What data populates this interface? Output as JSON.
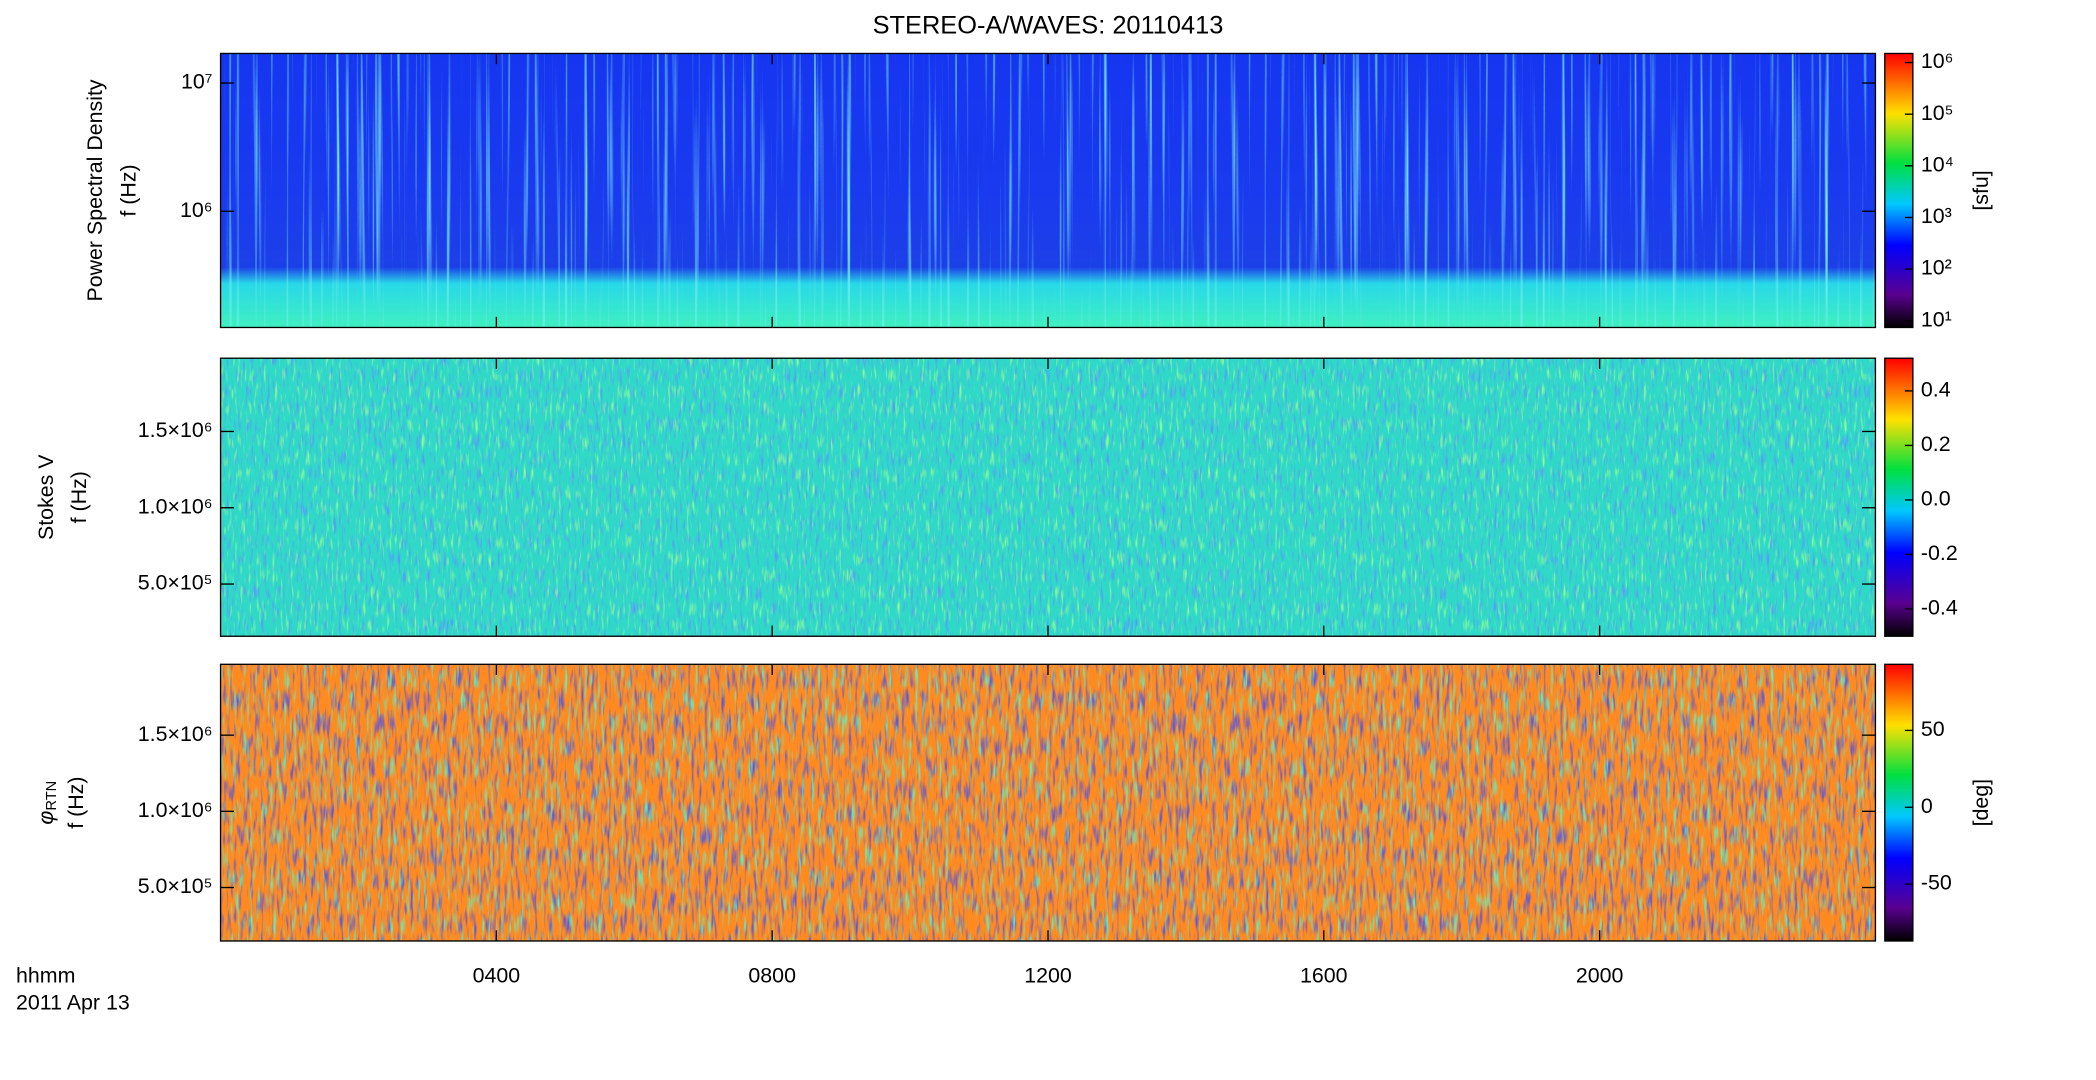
{
  "chart_data": [
    {
      "type": "heatmap",
      "title": "STEREO-A/WAVES: 20110413",
      "ylabel": [
        "Power Spectral Density",
        "f (Hz)"
      ],
      "yscale": "log",
      "ylim": [
        124000,
        17000000
      ],
      "yticks": [
        {
          "value": 1000000,
          "label": "10⁶"
        },
        {
          "value": 10000000,
          "label": "10⁷"
        }
      ],
      "xlim": [
        0,
        24
      ],
      "xticks": [
        {
          "value": 4,
          "label": "0400"
        },
        {
          "value": 8,
          "label": "0800"
        },
        {
          "value": 12,
          "label": "1200"
        },
        {
          "value": 16,
          "label": "1600"
        },
        {
          "value": 20,
          "label": "2000"
        }
      ],
      "colorbar": {
        "scale": "log",
        "lim": [
          7.4,
          1500000
        ],
        "ticks": [
          {
            "value": 10,
            "label": "10¹"
          },
          {
            "value": 100,
            "label": "10²"
          },
          {
            "value": 1000,
            "label": "10³"
          },
          {
            "value": 10000,
            "label": "10⁴"
          },
          {
            "value": 100000,
            "label": "10⁵"
          },
          {
            "value": 1000000,
            "label": "10⁶"
          }
        ],
        "label": "[sfu]"
      }
    },
    {
      "type": "heatmap",
      "ylabel": [
        "Stokes V",
        "f (Hz)"
      ],
      "yscale": "linear",
      "ylim": [
        158000,
        1980000
      ],
      "yticks": [
        {
          "value": 500000,
          "label": "5.0×10⁵"
        },
        {
          "value": 1000000,
          "label": "1.0×10⁶"
        },
        {
          "value": 1500000,
          "label": "1.5×10⁶"
        }
      ],
      "xlim": [
        0,
        24
      ],
      "xticks": [
        {
          "value": 4,
          "label": "0400"
        },
        {
          "value": 8,
          "label": "0800"
        },
        {
          "value": 12,
          "label": "1200"
        },
        {
          "value": 16,
          "label": "1600"
        },
        {
          "value": 20,
          "label": "2000"
        }
      ],
      "colorbar": {
        "scale": "linear",
        "lim": [
          -0.5,
          0.52
        ],
        "ticks": [
          -0.4,
          -0.2,
          {
            "value": 0,
            "label": "0.0"
          },
          0.2,
          0.4
        ]
      }
    },
    {
      "type": "heatmap",
      "ylabel": [
        "φ",
        "f (Hz)"
      ],
      "ylabel_subscript": "RTN",
      "yscale": "linear",
      "ylim": [
        149000,
        1965000
      ],
      "yticks": [
        {
          "value": 500000,
          "label": "5.0×10⁵"
        },
        {
          "value": 1000000,
          "label": "1.0×10⁶"
        },
        {
          "value": 1500000,
          "label": "1.5×10⁶"
        }
      ],
      "xlim": [
        0,
        24
      ],
      "xticks": [
        {
          "value": 4,
          "label": "0400"
        },
        {
          "value": 8,
          "label": "0800"
        },
        {
          "value": 12,
          "label": "1200"
        },
        {
          "value": 16,
          "label": "1600"
        },
        {
          "value": 20,
          "label": "2000"
        }
      ],
      "xlabel": [
        "hhmm",
        "2011 Apr 13"
      ],
      "colorbar": {
        "scale": "linear",
        "lim": [
          -87,
          93
        ],
        "ticks": [
          -50,
          0,
          50
        ],
        "label": "[deg]"
      }
    }
  ]
}
